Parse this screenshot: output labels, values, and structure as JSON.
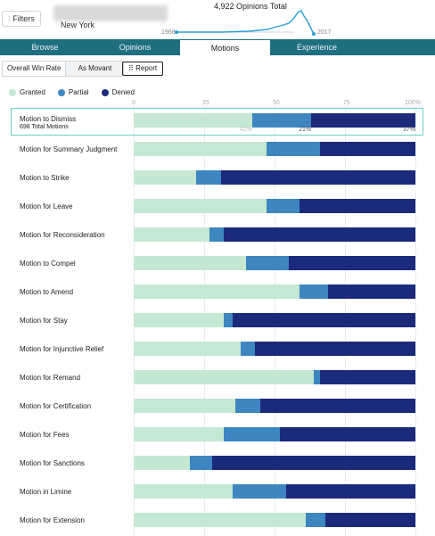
{
  "header": {
    "filters_label": "Filters",
    "filters_icon": "sliders-icon",
    "subtitle": "New York",
    "opinions_total": "4,922 Opinions Total",
    "year_start": "1968",
    "year_end": "2017"
  },
  "tabs": [
    {
      "label": "Browse",
      "active": false
    },
    {
      "label": "Opinions",
      "active": false
    },
    {
      "label": "Motions",
      "active": true
    },
    {
      "label": "Experience",
      "active": false
    }
  ],
  "controls": {
    "overall_win_rate": "Overall Win Rate",
    "as_movant": "As Movant",
    "report": "Report",
    "report_icon": "grid-icon"
  },
  "legend": [
    {
      "label": "Granted",
      "color": "#c5e8d2"
    },
    {
      "label": "Partial",
      "color": "#3d86c0"
    },
    {
      "label": "Denied",
      "color": "#1b2a7a"
    }
  ],
  "chart_data": {
    "type": "bar",
    "stacked": true,
    "orientation": "horizontal",
    "xlim": [
      0,
      100
    ],
    "x_ticks": [
      "0",
      "25",
      "50",
      "75",
      "100%"
    ],
    "series": [
      {
        "name": "Granted",
        "color": "#c5e8d2"
      },
      {
        "name": "Partial",
        "color": "#3d86c0"
      },
      {
        "name": "Denied",
        "color": "#1b2a7a"
      }
    ],
    "rows": [
      {
        "label": "Motion to Dismiss",
        "sub": "698 Total Motions",
        "values": [
          42,
          21,
          37
        ],
        "pct_labels": [
          "42%",
          "21%",
          "37%"
        ]
      },
      {
        "label": "Motion for Summary Judgment",
        "values": [
          47,
          19,
          34
        ]
      },
      {
        "label": "Motion to Strike",
        "values": [
          22,
          9,
          69
        ]
      },
      {
        "label": "Motion for Leave",
        "values": [
          47,
          12,
          41
        ]
      },
      {
        "label": "Motion for Reconsideration",
        "values": [
          27,
          5,
          68
        ]
      },
      {
        "label": "Motion to Compel",
        "values": [
          40,
          15,
          45
        ]
      },
      {
        "label": "Motion to Amend",
        "values": [
          59,
          10,
          31
        ]
      },
      {
        "label": "Motion for Stay",
        "values": [
          32,
          3,
          65
        ]
      },
      {
        "label": "Motion for Injunctive Relief",
        "values": [
          38,
          5,
          57
        ]
      },
      {
        "label": "Motion for Remand",
        "values": [
          64,
          2,
          34
        ]
      },
      {
        "label": "Motion for Certification",
        "values": [
          36,
          9,
          55
        ]
      },
      {
        "label": "Motion for Fees",
        "values": [
          32,
          20,
          48
        ]
      },
      {
        "label": "Motion for Sanctions",
        "values": [
          20,
          8,
          72
        ]
      },
      {
        "label": "Motion in Limine",
        "values": [
          35,
          19,
          46
        ]
      },
      {
        "label": "Motion for Extension",
        "values": [
          61,
          7,
          32
        ]
      }
    ]
  }
}
